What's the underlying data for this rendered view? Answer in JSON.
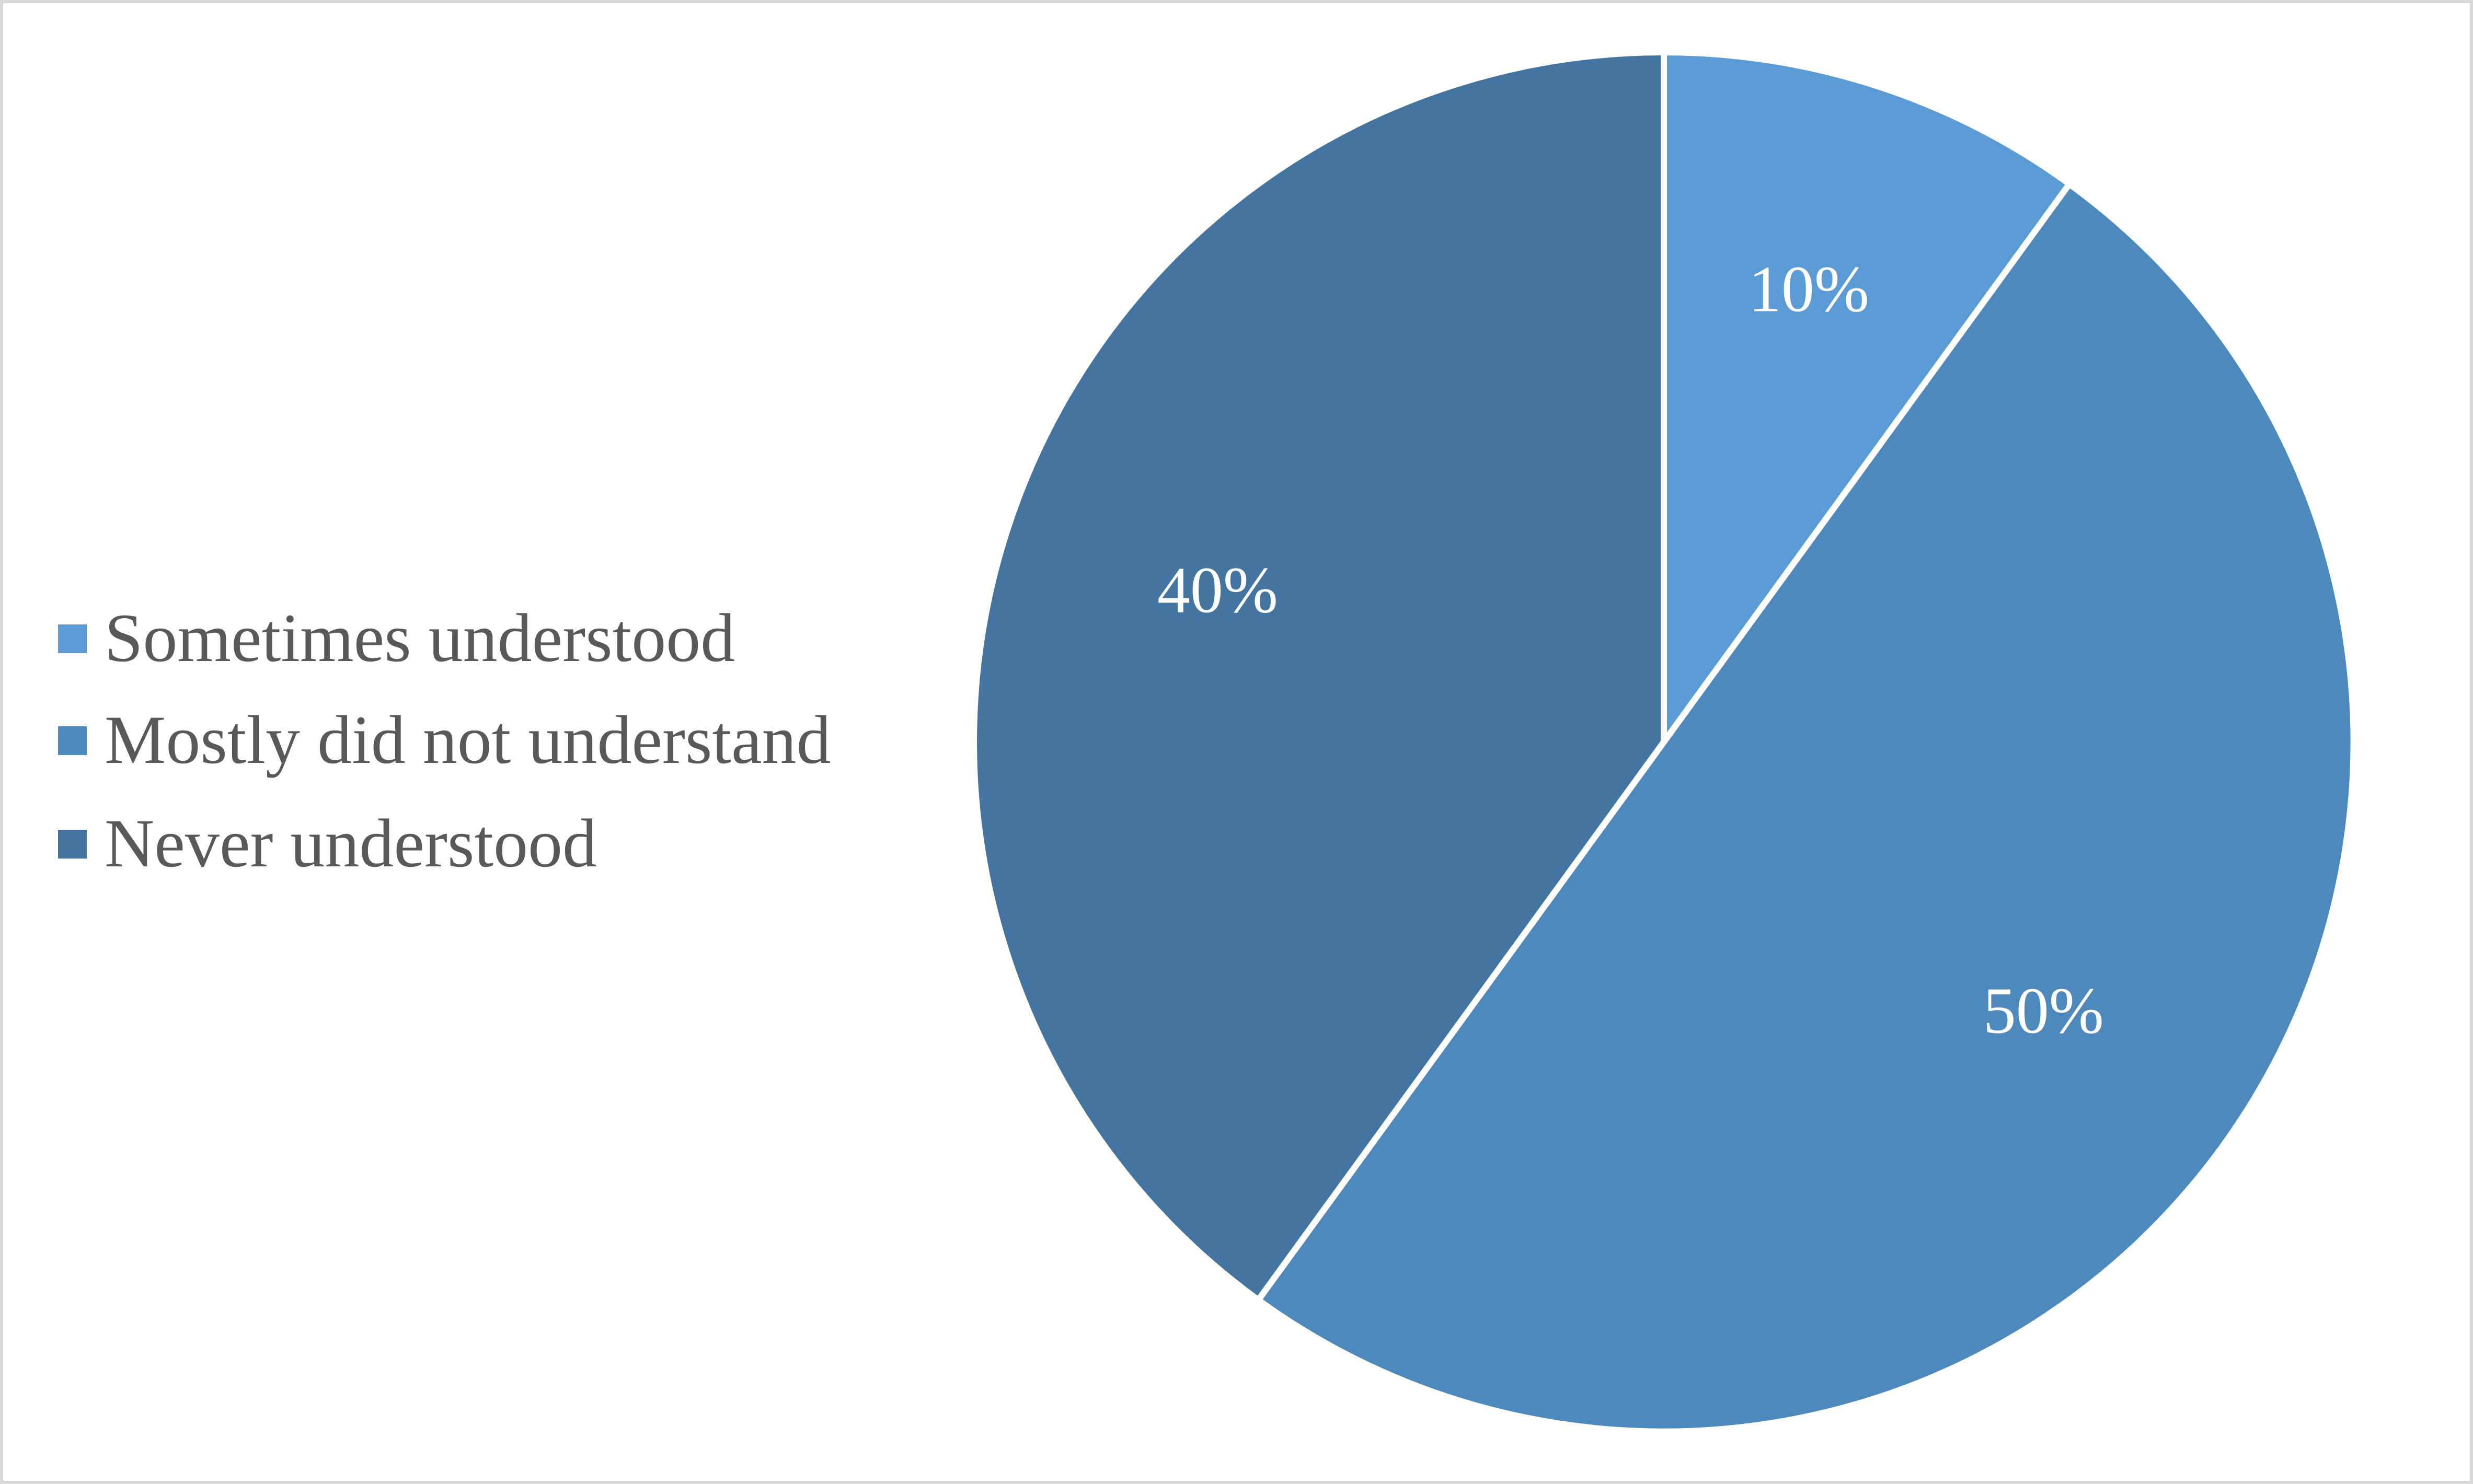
{
  "chart_data": {
    "type": "pie",
    "categories": [
      "Sometimes understood",
      "Mostly did not understand",
      "Never understood"
    ],
    "values": [
      10,
      50,
      40
    ],
    "labels": [
      "10%",
      "50%",
      "40%"
    ],
    "colors": [
      "#5b9bd5",
      "#4e89be",
      "#4474a0"
    ],
    "title": "",
    "legend_position": "left",
    "start_angle": "12 o'clock, clockwise"
  }
}
